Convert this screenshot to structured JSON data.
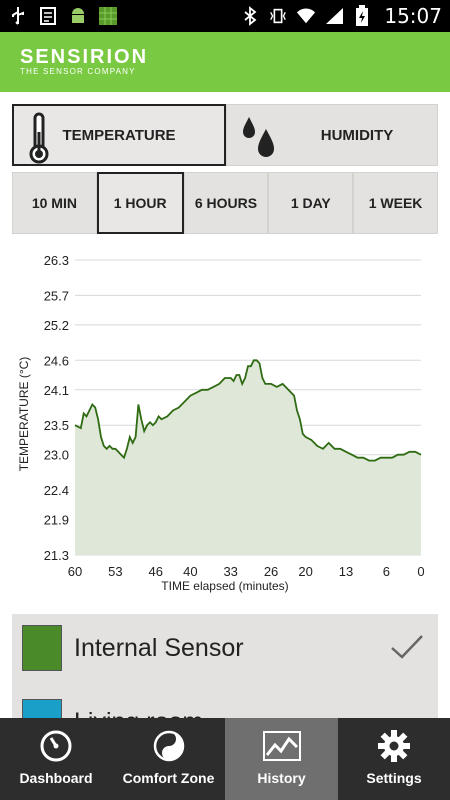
{
  "status_bar": {
    "time": "15:07",
    "icons": [
      "usb-icon",
      "sim-card-icon",
      "android-icon",
      "grid-app-icon",
      "bluetooth-icon",
      "vibrate-icon",
      "wifi-icon",
      "signal-icon",
      "battery-icon"
    ]
  },
  "header": {
    "brand": "SENSIRION",
    "tagline": "THE SENSOR COMPANY",
    "color": "#7ac943"
  },
  "sensor_types": [
    {
      "label": "TEMPERATURE",
      "icon": "thermometer-icon",
      "active": true
    },
    {
      "label": "HUMIDITY",
      "icon": "water-drops-icon",
      "active": false
    }
  ],
  "time_ranges": [
    {
      "label": "10 MIN",
      "active": false
    },
    {
      "label": "1 HOUR",
      "active": true
    },
    {
      "label": "6 HOURS",
      "active": false
    },
    {
      "label": "1 DAY",
      "active": false
    },
    {
      "label": "1 WEEK",
      "active": false
    }
  ],
  "chart_data": {
    "type": "area",
    "xlabel": "TIME elapsed (minutes)",
    "ylabel": "TEMPERATURE (°C)",
    "xlim": [
      60,
      0
    ],
    "ylim": [
      21.3,
      26.3
    ],
    "x_ticks": [
      60,
      53,
      46,
      40,
      33,
      26,
      20,
      13,
      6,
      0
    ],
    "y_ticks": [
      "26.3",
      "25.7",
      "25.2",
      "24.6",
      "24.1",
      "23.5",
      "23.0",
      "22.4",
      "21.9",
      "21.3"
    ],
    "grid": true,
    "line_color": "#2e6b12",
    "fill_color": "#dfe8d8",
    "series": [
      {
        "x": [
          60,
          59,
          58.5,
          58,
          57,
          56.5,
          56,
          55.5,
          55,
          54.5,
          54,
          53.5,
          53,
          52.5,
          52,
          51.5,
          51,
          50.5,
          50,
          49.5,
          49,
          48.5,
          48,
          47.5,
          47,
          46.5,
          46,
          45.5,
          45,
          44,
          43,
          42,
          41,
          40,
          39,
          38,
          37,
          36,
          35,
          34,
          33,
          32.5,
          32,
          31.5,
          31,
          30.5,
          30,
          29.5,
          29,
          28.5,
          28,
          27.5,
          27,
          26,
          25,
          24,
          23,
          22,
          21.5,
          21,
          20.5,
          20,
          19,
          18,
          17,
          16,
          15,
          14,
          13,
          12,
          11,
          10,
          9,
          8,
          7,
          6,
          5,
          4,
          3,
          2,
          1,
          0
        ],
        "y": [
          23.5,
          23.45,
          23.7,
          23.65,
          23.85,
          23.8,
          23.6,
          23.3,
          23.15,
          23.1,
          23.15,
          23.1,
          23.1,
          23.05,
          23.0,
          22.95,
          23.1,
          23.3,
          23.2,
          23.3,
          23.85,
          23.6,
          23.4,
          23.5,
          23.55,
          23.5,
          23.55,
          23.65,
          23.6,
          23.65,
          23.75,
          23.8,
          23.9,
          24.0,
          24.05,
          24.1,
          24.1,
          24.15,
          24.2,
          24.3,
          24.3,
          24.25,
          24.35,
          24.35,
          24.2,
          24.3,
          24.5,
          24.5,
          24.6,
          24.6,
          24.55,
          24.3,
          24.2,
          24.2,
          24.15,
          24.2,
          24.1,
          24.0,
          23.75,
          23.6,
          23.35,
          23.3,
          23.25,
          23.15,
          23.1,
          23.2,
          23.1,
          23.1,
          23.05,
          23.0,
          22.95,
          22.95,
          22.9,
          22.9,
          22.95,
          22.95,
          22.95,
          23.0,
          23.0,
          23.05,
          23.05,
          23.0
        ]
      }
    ]
  },
  "legend": [
    {
      "label": "Internal Sensor",
      "color": "#4a8a28",
      "checked": true
    },
    {
      "label": "Living room",
      "color": "#1aa0c8",
      "checked": false
    }
  ],
  "nav": [
    {
      "label": "Dashboard",
      "icon": "dashboard-gauge-icon",
      "active": false
    },
    {
      "label": "Comfort Zone",
      "icon": "comfort-zone-icon",
      "active": false
    },
    {
      "label": "History",
      "icon": "history-chart-icon",
      "active": true
    },
    {
      "label": "Settings",
      "icon": "gear-icon",
      "active": false
    }
  ]
}
